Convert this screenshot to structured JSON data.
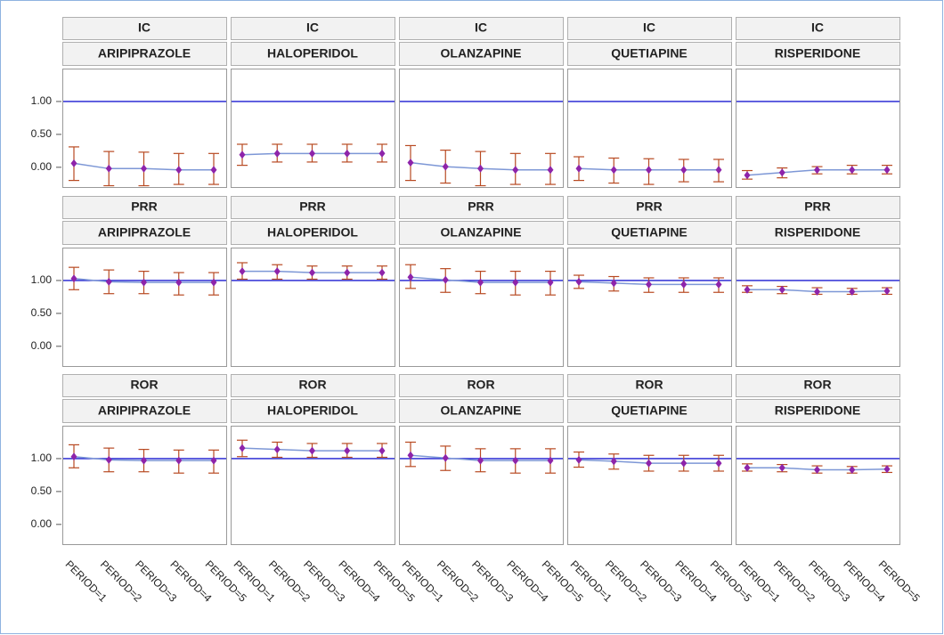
{
  "chart_data": {
    "type": "errorbar",
    "categories": [
      "PERIOD=1",
      "PERIOD=2",
      "PERIOD=3",
      "PERIOD=4",
      "PERIOD=5"
    ],
    "measures": [
      "IC",
      "PRR",
      "ROR"
    ],
    "drugs": [
      "ARIPIPRAZOLE",
      "HALOPERIDOL",
      "OLANZAPINE",
      "QUETIAPINE",
      "RISPERIDONE"
    ],
    "ylim": [
      -0.3,
      1.5
    ],
    "yticks": [
      {
        "value": 0,
        "label": "0.00"
      },
      {
        "value": 0.5,
        "label": "0.50"
      },
      {
        "value": 1,
        "label": "1.00"
      }
    ],
    "reference_line": 1,
    "line_color": "#7d97d6",
    "point_color": "#8e24aa",
    "error_color": "#b84a22",
    "reference_color": "#1a1ad0",
    "panels": [
      [
        {
          "values": [
            0.06,
            -0.02,
            -0.02,
            -0.04,
            -0.04
          ],
          "lower": [
            -0.2,
            -0.28,
            -0.28,
            -0.26,
            -0.26
          ],
          "upper": [
            0.31,
            0.24,
            0.23,
            0.21,
            0.21
          ]
        },
        {
          "values": [
            0.19,
            0.21,
            0.21,
            0.21,
            0.21
          ],
          "lower": [
            0.03,
            0.08,
            0.08,
            0.08,
            0.08
          ],
          "upper": [
            0.35,
            0.35,
            0.35,
            0.35,
            0.35
          ]
        },
        {
          "values": [
            0.07,
            0.01,
            -0.02,
            -0.04,
            -0.04
          ],
          "lower": [
            -0.2,
            -0.24,
            -0.28,
            -0.26,
            -0.26
          ],
          "upper": [
            0.33,
            0.26,
            0.24,
            0.21,
            0.21
          ]
        },
        {
          "values": [
            -0.02,
            -0.04,
            -0.04,
            -0.04,
            -0.04
          ],
          "lower": [
            -0.2,
            -0.24,
            -0.26,
            -0.22,
            -0.22
          ],
          "upper": [
            0.16,
            0.14,
            0.13,
            0.12,
            0.12
          ]
        },
        {
          "values": [
            -0.12,
            -0.08,
            -0.04,
            -0.04,
            -0.04
          ],
          "lower": [
            -0.18,
            -0.16,
            -0.1,
            -0.1,
            -0.1
          ],
          "upper": [
            -0.05,
            -0.01,
            0.01,
            0.03,
            0.03
          ]
        }
      ],
      [
        {
          "values": [
            1.03,
            0.98,
            0.97,
            0.97,
            0.97
          ],
          "lower": [
            0.86,
            0.8,
            0.8,
            0.78,
            0.78
          ],
          "upper": [
            1.2,
            1.16,
            1.14,
            1.12,
            1.12
          ]
        },
        {
          "values": [
            1.14,
            1.14,
            1.12,
            1.12,
            1.12
          ],
          "lower": [
            1.02,
            1.02,
            1.02,
            1.02,
            1.02
          ],
          "upper": [
            1.27,
            1.24,
            1.22,
            1.22,
            1.22
          ]
        },
        {
          "values": [
            1.05,
            1.01,
            0.97,
            0.97,
            0.97
          ],
          "lower": [
            0.88,
            0.82,
            0.8,
            0.78,
            0.78
          ],
          "upper": [
            1.24,
            1.18,
            1.14,
            1.14,
            1.14
          ]
        },
        {
          "values": [
            0.98,
            0.96,
            0.94,
            0.94,
            0.94
          ],
          "lower": [
            0.88,
            0.84,
            0.82,
            0.82,
            0.82
          ],
          "upper": [
            1.08,
            1.06,
            1.04,
            1.04,
            1.04
          ]
        },
        {
          "values": [
            0.86,
            0.86,
            0.83,
            0.83,
            0.84
          ],
          "lower": [
            0.82,
            0.8,
            0.79,
            0.79,
            0.79
          ],
          "upper": [
            0.92,
            0.91,
            0.89,
            0.88,
            0.89
          ]
        }
      ],
      [
        {
          "values": [
            1.03,
            0.98,
            0.97,
            0.97,
            0.97
          ],
          "lower": [
            0.86,
            0.8,
            0.8,
            0.78,
            0.78
          ],
          "upper": [
            1.21,
            1.16,
            1.14,
            1.13,
            1.13
          ]
        },
        {
          "values": [
            1.16,
            1.14,
            1.12,
            1.12,
            1.12
          ],
          "lower": [
            1.03,
            1.02,
            1.02,
            1.02,
            1.02
          ],
          "upper": [
            1.28,
            1.25,
            1.23,
            1.23,
            1.23
          ]
        },
        {
          "values": [
            1.05,
            1.01,
            0.97,
            0.97,
            0.97
          ],
          "lower": [
            0.88,
            0.82,
            0.8,
            0.78,
            0.78
          ],
          "upper": [
            1.25,
            1.19,
            1.15,
            1.15,
            1.15
          ]
        },
        {
          "values": [
            0.98,
            0.96,
            0.93,
            0.93,
            0.93
          ],
          "lower": [
            0.87,
            0.84,
            0.81,
            0.81,
            0.81
          ],
          "upper": [
            1.1,
            1.07,
            1.05,
            1.05,
            1.05
          ]
        },
        {
          "values": [
            0.86,
            0.86,
            0.83,
            0.83,
            0.84
          ],
          "lower": [
            0.81,
            0.8,
            0.78,
            0.78,
            0.79
          ],
          "upper": [
            0.92,
            0.91,
            0.89,
            0.88,
            0.89
          ]
        }
      ]
    ]
  }
}
